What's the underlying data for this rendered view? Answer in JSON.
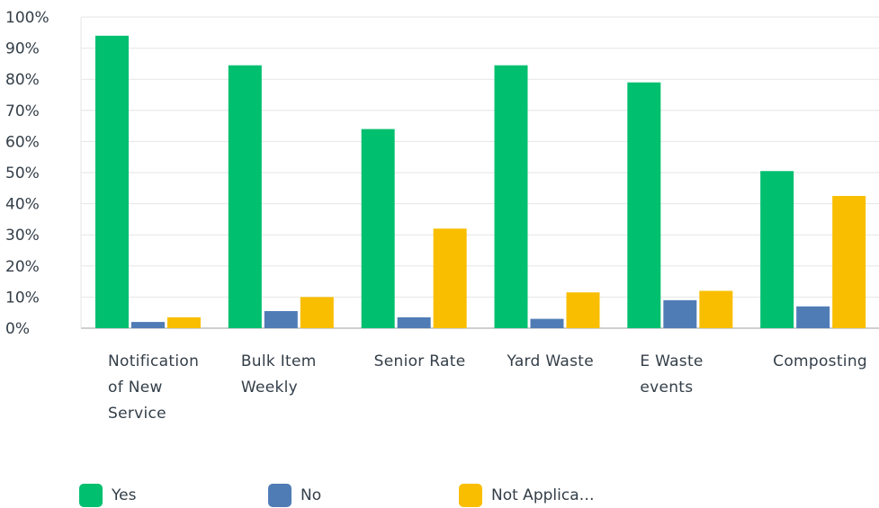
{
  "chart_data": {
    "type": "bar",
    "categories": [
      "Notification of New Service",
      "Bulk Item Weekly",
      "Senior Rate",
      "Yard Waste",
      "E Waste events",
      "Composting"
    ],
    "series": [
      {
        "name": "Yes",
        "color": "#00bf6f",
        "values": [
          94,
          84.5,
          64,
          84.5,
          79,
          50.5
        ]
      },
      {
        "name": "No",
        "color": "#507cb6",
        "values": [
          2,
          5.5,
          3.5,
          3,
          9,
          7
        ]
      },
      {
        "name": "Not Applica…",
        "color": "#f9be00",
        "values": [
          3.5,
          10,
          32,
          11.5,
          12,
          42.5
        ]
      }
    ],
    "ylim": [
      0,
      100
    ],
    "yticks": [
      {
        "value": 0,
        "label": "0%"
      },
      {
        "value": 10,
        "label": "10%"
      },
      {
        "value": 20,
        "label": "20%"
      },
      {
        "value": 30,
        "label": "30%"
      },
      {
        "value": 40,
        "label": "40%"
      },
      {
        "value": 50,
        "label": "50%"
      },
      {
        "value": 60,
        "label": "60%"
      },
      {
        "value": 70,
        "label": "70%"
      },
      {
        "value": 80,
        "label": "80%"
      },
      {
        "value": 90,
        "label": "90%"
      },
      {
        "value": 100,
        "label": "100%"
      }
    ],
    "grid": true
  }
}
